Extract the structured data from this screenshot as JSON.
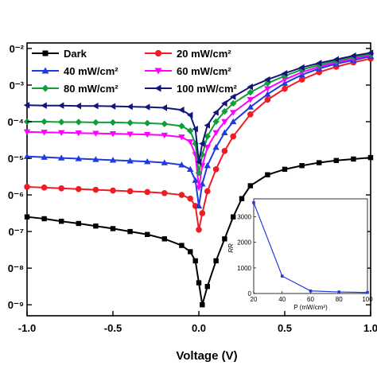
{
  "chart_data": [
    {
      "type": "line",
      "xlabel": "Voltage (V)",
      "ylabel": "",
      "xlim": [
        -1.0,
        1.0
      ],
      "ylim_log10": [
        -9.3,
        -1.85
      ],
      "yscale": "log",
      "x_ticks": [
        "-1.0",
        "-0.5",
        "0.0",
        "0.5",
        "1.0"
      ],
      "y_ticks": [
        {
          "exp": -2,
          "label": "0⁻²"
        },
        {
          "exp": -3,
          "label": "0⁻³"
        },
        {
          "exp": -4,
          "label": "0⁻⁴"
        },
        {
          "exp": -5,
          "label": "0⁻⁵"
        },
        {
          "exp": -6,
          "label": "0⁻⁶"
        },
        {
          "exp": -7,
          "label": "0⁻⁷"
        },
        {
          "exp": -8,
          "label": "0⁻⁸"
        },
        {
          "exp": -9,
          "label": "0⁻⁹"
        }
      ],
      "legend_position": "top-left",
      "legend_columns": 2,
      "series": [
        {
          "name": "Dark",
          "color": "#000000",
          "marker": "square",
          "log10_y": [
            [
              -1.0,
              -6.6
            ],
            [
              -0.9,
              -6.65
            ],
            [
              -0.8,
              -6.72
            ],
            [
              -0.7,
              -6.78
            ],
            [
              -0.6,
              -6.85
            ],
            [
              -0.5,
              -6.92
            ],
            [
              -0.4,
              -7.0
            ],
            [
              -0.3,
              -7.08
            ],
            [
              -0.2,
              -7.2
            ],
            [
              -0.1,
              -7.38
            ],
            [
              -0.05,
              -7.55
            ],
            [
              -0.02,
              -7.8
            ],
            [
              0.0,
              -8.4
            ],
            [
              0.02,
              -9.0
            ],
            [
              0.05,
              -8.5
            ],
            [
              0.1,
              -7.8
            ],
            [
              0.15,
              -7.2
            ],
            [
              0.2,
              -6.6
            ],
            [
              0.25,
              -6.1
            ],
            [
              0.3,
              -5.75
            ],
            [
              0.4,
              -5.45
            ],
            [
              0.5,
              -5.3
            ],
            [
              0.6,
              -5.2
            ],
            [
              0.7,
              -5.12
            ],
            [
              0.8,
              -5.06
            ],
            [
              0.9,
              -5.02
            ],
            [
              1.0,
              -4.98
            ]
          ]
        },
        {
          "name": "20 mW/cm²",
          "color": "#ee1c25",
          "marker": "circle",
          "log10_y": [
            [
              -1.0,
              -5.78
            ],
            [
              -0.9,
              -5.8
            ],
            [
              -0.8,
              -5.82
            ],
            [
              -0.7,
              -5.84
            ],
            [
              -0.6,
              -5.86
            ],
            [
              -0.5,
              -5.88
            ],
            [
              -0.4,
              -5.9
            ],
            [
              -0.3,
              -5.92
            ],
            [
              -0.2,
              -5.95
            ],
            [
              -0.1,
              -6.0
            ],
            [
              -0.05,
              -6.1
            ],
            [
              -0.02,
              -6.3
            ],
            [
              0.0,
              -6.95
            ],
            [
              0.02,
              -6.5
            ],
            [
              0.05,
              -5.9
            ],
            [
              0.1,
              -5.3
            ],
            [
              0.15,
              -4.8
            ],
            [
              0.2,
              -4.4
            ],
            [
              0.3,
              -3.8
            ],
            [
              0.4,
              -3.4
            ],
            [
              0.5,
              -3.1
            ],
            [
              0.6,
              -2.85
            ],
            [
              0.7,
              -2.65
            ],
            [
              0.8,
              -2.5
            ],
            [
              0.9,
              -2.38
            ],
            [
              1.0,
              -2.28
            ]
          ]
        },
        {
          "name": "40 mW/cm²",
          "color": "#1f3bdf",
          "marker": "triangle-up",
          "log10_y": [
            [
              -1.0,
              -4.95
            ],
            [
              -0.9,
              -4.97
            ],
            [
              -0.8,
              -4.99
            ],
            [
              -0.7,
              -5.01
            ],
            [
              -0.6,
              -5.03
            ],
            [
              -0.5,
              -5.05
            ],
            [
              -0.4,
              -5.07
            ],
            [
              -0.3,
              -5.09
            ],
            [
              -0.2,
              -5.12
            ],
            [
              -0.1,
              -5.18
            ],
            [
              -0.05,
              -5.3
            ],
            [
              -0.02,
              -5.6
            ],
            [
              0.0,
              -6.3
            ],
            [
              0.02,
              -5.7
            ],
            [
              0.05,
              -5.2
            ],
            [
              0.1,
              -4.7
            ],
            [
              0.15,
              -4.3
            ],
            [
              0.2,
              -4.0
            ],
            [
              0.3,
              -3.6
            ],
            [
              0.4,
              -3.25
            ],
            [
              0.5,
              -2.95
            ],
            [
              0.6,
              -2.72
            ],
            [
              0.7,
              -2.55
            ],
            [
              0.8,
              -2.42
            ],
            [
              0.9,
              -2.32
            ],
            [
              1.0,
              -2.22
            ]
          ]
        },
        {
          "name": "60 mW/cm²",
          "color": "#ff00ff",
          "marker": "triangle-down",
          "log10_y": [
            [
              -1.0,
              -4.28
            ],
            [
              -0.9,
              -4.29
            ],
            [
              -0.8,
              -4.3
            ],
            [
              -0.7,
              -4.31
            ],
            [
              -0.6,
              -4.32
            ],
            [
              -0.5,
              -4.33
            ],
            [
              -0.4,
              -4.34
            ],
            [
              -0.3,
              -4.35
            ],
            [
              -0.2,
              -4.37
            ],
            [
              -0.1,
              -4.42
            ],
            [
              -0.05,
              -4.55
            ],
            [
              -0.02,
              -4.9
            ],
            [
              0.0,
              -5.8
            ],
            [
              0.02,
              -5.2
            ],
            [
              0.05,
              -4.7
            ],
            [
              0.1,
              -4.3
            ],
            [
              0.15,
              -4.0
            ],
            [
              0.2,
              -3.75
            ],
            [
              0.3,
              -3.4
            ],
            [
              0.4,
              -3.1
            ],
            [
              0.5,
              -2.85
            ],
            [
              0.6,
              -2.65
            ],
            [
              0.7,
              -2.5
            ],
            [
              0.8,
              -2.38
            ],
            [
              0.9,
              -2.28
            ],
            [
              1.0,
              -2.18
            ]
          ]
        },
        {
          "name": "80 mW/cm²",
          "color": "#109e3b",
          "marker": "diamond",
          "log10_y": [
            [
              -1.0,
              -4.0
            ],
            [
              -0.9,
              -4.0
            ],
            [
              -0.8,
              -4.01
            ],
            [
              -0.7,
              -4.01
            ],
            [
              -0.6,
              -4.02
            ],
            [
              -0.5,
              -4.02
            ],
            [
              -0.4,
              -4.03
            ],
            [
              -0.3,
              -4.04
            ],
            [
              -0.2,
              -4.06
            ],
            [
              -0.1,
              -4.12
            ],
            [
              -0.05,
              -4.25
            ],
            [
              -0.02,
              -4.6
            ],
            [
              0.0,
              -5.4
            ],
            [
              0.02,
              -4.9
            ],
            [
              0.05,
              -4.4
            ],
            [
              0.1,
              -4.0
            ],
            [
              0.15,
              -3.72
            ],
            [
              0.2,
              -3.5
            ],
            [
              0.3,
              -3.2
            ],
            [
              0.4,
              -2.95
            ],
            [
              0.5,
              -2.75
            ],
            [
              0.6,
              -2.58
            ],
            [
              0.7,
              -2.45
            ],
            [
              0.8,
              -2.34
            ],
            [
              0.9,
              -2.24
            ],
            [
              1.0,
              -2.15
            ]
          ]
        },
        {
          "name": "100 mW/cm²",
          "color": "#14157a",
          "marker": "triangle-left",
          "log10_y": [
            [
              -1.0,
              -3.55
            ],
            [
              -0.9,
              -3.56
            ],
            [
              -0.8,
              -3.56
            ],
            [
              -0.7,
              -3.57
            ],
            [
              -0.6,
              -3.57
            ],
            [
              -0.5,
              -3.58
            ],
            [
              -0.4,
              -3.59
            ],
            [
              -0.3,
              -3.6
            ],
            [
              -0.2,
              -3.62
            ],
            [
              -0.1,
              -3.68
            ],
            [
              -0.05,
              -3.82
            ],
            [
              -0.02,
              -4.2
            ],
            [
              0.0,
              -5.1
            ],
            [
              0.02,
              -4.6
            ],
            [
              0.05,
              -4.1
            ],
            [
              0.1,
              -3.75
            ],
            [
              0.15,
              -3.5
            ],
            [
              0.2,
              -3.32
            ],
            [
              0.3,
              -3.05
            ],
            [
              0.4,
              -2.85
            ],
            [
              0.5,
              -2.68
            ],
            [
              0.6,
              -2.52
            ],
            [
              0.7,
              -2.4
            ],
            [
              0.8,
              -2.3
            ],
            [
              0.9,
              -2.2
            ],
            [
              1.0,
              -2.12
            ]
          ]
        }
      ]
    },
    {
      "type": "line",
      "inset": true,
      "xlabel": "P (mW/cm²)",
      "ylabel": "RR",
      "xlim": [
        20,
        100
      ],
      "ylim": [
        0,
        3700
      ],
      "x_ticks": [
        "20",
        "40",
        "60",
        "80",
        "100"
      ],
      "y_ticks": [
        "0",
        "1000",
        "2000",
        "3000"
      ],
      "series": [
        {
          "name": "",
          "color": "#1f3bdf",
          "marker": "square",
          "x": [
            20,
            40,
            60,
            80,
            100
          ],
          "y": [
            3550,
            680,
            100,
            60,
            40
          ]
        }
      ]
    }
  ]
}
